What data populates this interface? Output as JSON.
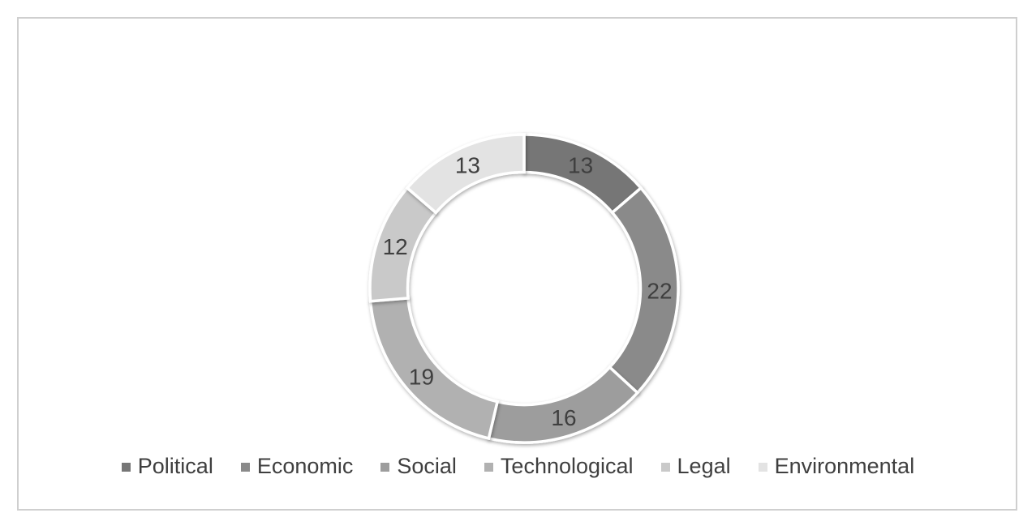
{
  "window": {
    "background_color": "#ffffff",
    "frame_border_color": "#cfcfcf"
  },
  "chart_data": {
    "type": "pie",
    "subtype": "doughnut",
    "title": "",
    "categories": [
      "Political",
      "Economic",
      "Social",
      "Technological",
      "Legal",
      "Environmental"
    ],
    "values": [
      13,
      22,
      16,
      19,
      12,
      13
    ],
    "total": 95,
    "colors": [
      "#767676",
      "#8a8a8a",
      "#9d9d9d",
      "#b1b1b1",
      "#c9c9c9",
      "#e3e3e3"
    ],
    "data_labels": {
      "show": "value",
      "values_shown": [
        "13",
        "22",
        "16",
        "19",
        "12",
        "13"
      ],
      "color": "#3f3f3f"
    },
    "legend_position": "bottom",
    "legend_text_color": "#3f3f3f",
    "start_angle_deg": 0,
    "direction": "clockwise",
    "slice_separator_color": "#ffffff"
  }
}
